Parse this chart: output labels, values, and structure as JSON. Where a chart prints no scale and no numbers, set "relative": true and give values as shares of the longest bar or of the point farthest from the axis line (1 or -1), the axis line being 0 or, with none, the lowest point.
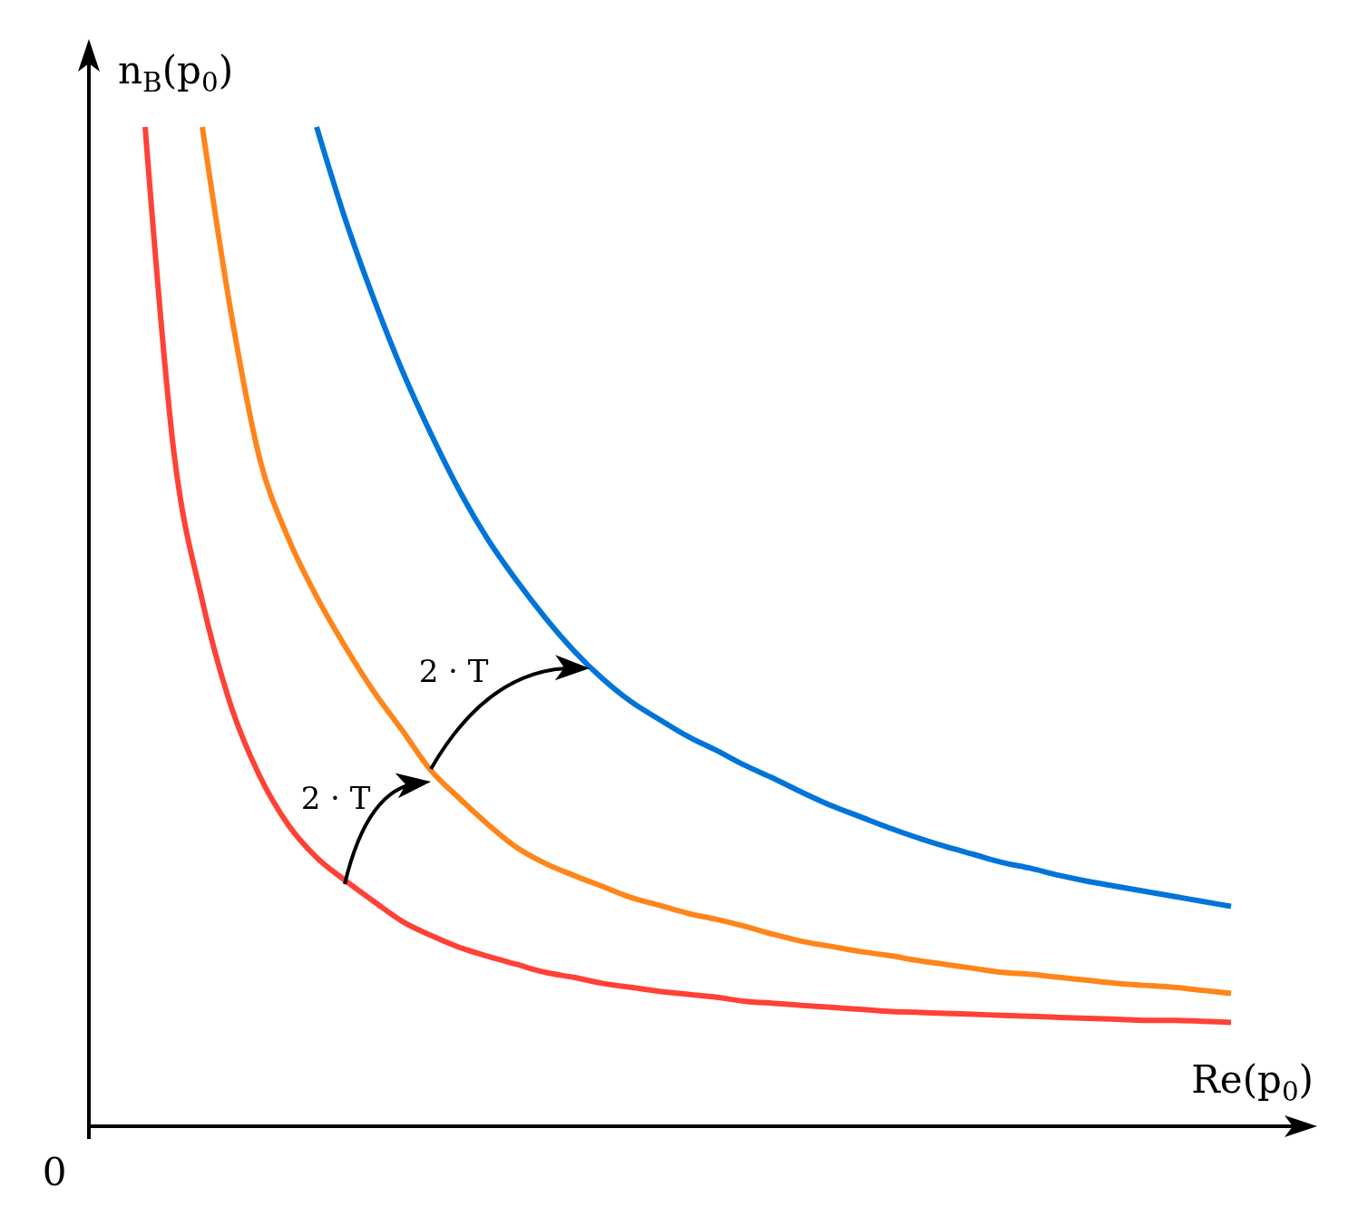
{
  "chart_data": {
    "type": "line",
    "relative": true,
    "xlabel": "Re(p$_{0}$)",
    "ylabel": "n$_{B}$(p$_{0}$)",
    "categories": [
      null,
      null,
      null,
      null,
      null,
      null,
      null,
      null,
      null,
      null,
      null,
      null,
      null,
      null,
      null,
      null,
      null,
      null,
      null,
      null,
      null,
      null,
      null,
      null,
      null,
      null,
      null,
      null,
      null,
      null,
      null,
      null,
      null,
      null,
      null,
      null,
      null,
      null,
      null
    ],
    "series": [
      {
        "color": "#ff4136",
        "values": [
          1.0,
          0.676,
          0.526,
          0.421,
          0.351,
          0.302,
          0.269,
          0.246,
          0.225,
          0.205,
          0.191,
          0.179,
          0.17,
          0.162,
          0.154,
          0.149,
          0.143,
          0.139,
          0.135,
          0.132,
          0.129,
          0.125,
          0.123,
          0.121,
          0.119,
          0.117,
          0.115,
          0.114,
          0.113,
          0.112,
          0.111,
          0.11,
          0.109,
          0.108,
          0.107,
          0.106,
          0.106,
          0.105,
          0.104
        ]
      },
      {
        "color": "#ff851b",
        "values": [
          null,
          null,
          1.0,
          0.815,
          0.669,
          0.589,
          0.53,
          0.48,
          0.435,
          0.396,
          0.356,
          0.328,
          0.302,
          0.279,
          0.263,
          0.251,
          0.24,
          0.229,
          0.221,
          0.213,
          0.207,
          0.2,
          0.192,
          0.185,
          0.18,
          0.175,
          0.171,
          0.166,
          0.162,
          0.158,
          0.154,
          0.152,
          0.149,
          0.146,
          0.143,
          0.141,
          0.139,
          0.136,
          0.133
        ]
      },
      {
        "color": "#0074d9",
        "values": [
          null,
          null,
          null,
          null,
          null,
          null,
          1.0,
          0.908,
          0.828,
          0.756,
          0.693,
          0.636,
          0.587,
          0.546,
          0.509,
          0.476,
          0.448,
          0.425,
          0.407,
          0.39,
          0.376,
          0.361,
          0.348,
          0.334,
          0.321,
          0.31,
          0.299,
          0.289,
          0.28,
          0.272,
          0.264,
          0.258,
          0.251,
          0.245,
          0.24,
          0.235,
          0.23,
          0.225,
          0.22
        ]
      }
    ],
    "annotations": [
      "2 · T",
      "2 · T",
      "0"
    ]
  }
}
